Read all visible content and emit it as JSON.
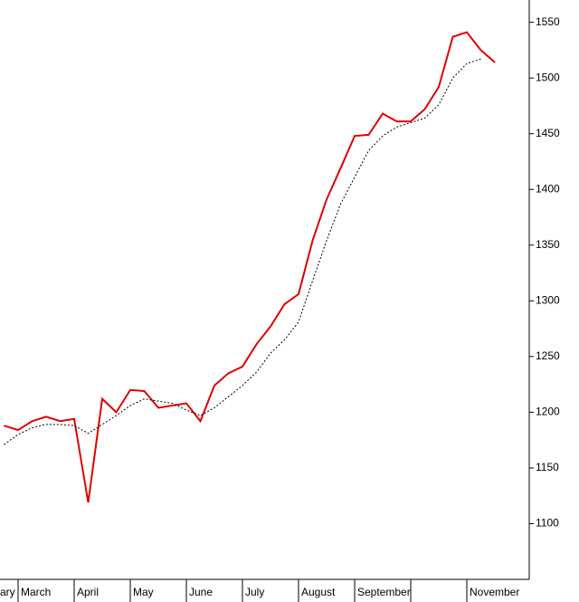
{
  "chart_data": {
    "type": "line",
    "categories": [
      "ary",
      "March",
      null,
      null,
      null,
      "April",
      null,
      null,
      null,
      "May",
      null,
      null,
      null,
      "June",
      null,
      null,
      null,
      "July",
      null,
      null,
      null,
      "August",
      null,
      null,
      null,
      "September",
      null,
      null,
      null,
      null,
      null,
      null,
      null,
      "November",
      null,
      null
    ],
    "series": [
      {
        "color": "#e00000",
        "style": "solid",
        "values": [
          1188,
          1184,
          1192,
          1196,
          1192,
          1194,
          1119,
          1212,
          1200,
          1220,
          1219,
          1204,
          1206,
          1208,
          1192,
          1224,
          1235,
          1241,
          1261,
          1277,
          1297,
          1306,
          1354,
          1391,
          1419,
          1448,
          1449,
          1468,
          1461,
          1461,
          1472,
          1492,
          1537,
          1541,
          1525,
          1514
        ]
      },
      {
        "color": "#000000",
        "style": "dotted",
        "values": [
          1171,
          1180,
          1186,
          1189,
          1189,
          1188,
          1181,
          1189,
          1197,
          1206,
          1212,
          1210,
          1208,
          1202,
          1197,
          1204,
          1214,
          1224,
          1236,
          1253,
          1265,
          1281,
          1318,
          1354,
          1387,
          1411,
          1435,
          1448,
          1456,
          1460,
          1464,
          1476,
          1500,
          1513,
          1517,
          null
        ]
      }
    ],
    "ylim": [
      1050,
      1570
    ],
    "yticks": [
      1100,
      1150,
      1200,
      1250,
      1300,
      1350,
      1400,
      1450,
      1500,
      1550
    ],
    "y_axis_side": "right"
  }
}
